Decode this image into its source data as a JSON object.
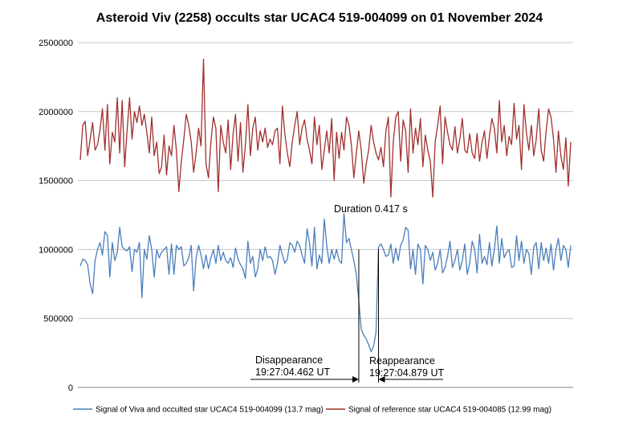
{
  "chart_data": {
    "type": "line",
    "title": "Asteroid Viv (2258) occults star UCAC4 519-004099 on 01 November 2024",
    "xlabel": "",
    "ylabel": "",
    "ylim": [
      0,
      2500000
    ],
    "yticks": [
      0,
      500000,
      1000000,
      1500000,
      2000000,
      2500000
    ],
    "ytick_labels": [
      "0",
      "500000",
      "1000000",
      "1500000",
      "2000000",
      "2500000"
    ],
    "grid": true,
    "legend_position": "bottom",
    "n_points": 200,
    "series": [
      {
        "name": "Signal of Viva and occulted star UCAC4 519-004099 (13.7 mag)",
        "color": "#4a7ebb",
        "values": [
          880000,
          930000,
          920000,
          890000,
          750000,
          680000,
          920000,
          1000000,
          1050000,
          960000,
          1130000,
          1100000,
          800000,
          1050000,
          920000,
          980000,
          1160000,
          1020000,
          1000000,
          990000,
          1020000,
          840000,
          1000000,
          980000,
          1050000,
          650000,
          1000000,
          930000,
          1100000,
          1000000,
          800000,
          1000000,
          940000,
          980000,
          1000000,
          1020000,
          820000,
          1040000,
          820000,
          1030000,
          1000000,
          1020000,
          880000,
          900000,
          940000,
          1030000,
          700000,
          940000,
          1030000,
          960000,
          860000,
          960000,
          860000,
          940000,
          1000000,
          900000,
          1030000,
          920000,
          980000,
          920000,
          900000,
          940000,
          870000,
          1010000,
          930000,
          890000,
          860000,
          790000,
          1060000,
          900000,
          950000,
          800000,
          860000,
          1000000,
          920000,
          1020000,
          940000,
          950000,
          920000,
          820000,
          900000,
          1030000,
          960000,
          900000,
          930000,
          1050000,
          1030000,
          980000,
          1060000,
          1030000,
          960000,
          900000,
          1150000,
          1050000,
          880000,
          1160000,
          860000,
          960000,
          900000,
          1220000,
          1030000,
          900000,
          1000000,
          930000,
          1000000,
          920000,
          900000,
          1260000,
          1050000,
          1080000,
          1000000,
          920000,
          820000,
          630000,
          420000,
          380000,
          350000,
          310000,
          260000,
          300000,
          400000,
          1020000,
          1040000,
          1000000,
          950000,
          960000,
          1040000,
          900000,
          1010000,
          920000,
          1030000,
          1070000,
          1160000,
          1140000,
          860000,
          1000000,
          820000,
          1040000,
          1000000,
          750000,
          1030000,
          1000000,
          920000,
          980000,
          850000,
          900000,
          1000000,
          830000,
          870000,
          950000,
          1060000,
          870000,
          920000,
          1000000,
          850000,
          920000,
          1040000,
          820000,
          900000,
          1060000,
          1000000,
          830000,
          1110000,
          900000,
          950000,
          890000,
          1050000,
          880000,
          1000000,
          1170000,
          900000,
          1080000,
          940000,
          980000,
          1000000,
          870000,
          880000,
          1100000,
          920000,
          1060000,
          900000,
          1000000,
          970000,
          820000,
          1020000,
          1050000,
          860000,
          1050000,
          920000,
          1010000,
          900000,
          1040000,
          850000,
          1000000,
          1080000,
          920000,
          1030000,
          1000000,
          870000,
          1030000
        ]
      },
      {
        "name": "Signal of reference star UCAC4 519-004085 (12.99 mag)",
        "color": "#a0302e",
        "values": [
          1650000,
          1900000,
          1930000,
          1680000,
          1800000,
          1920000,
          1720000,
          1760000,
          1870000,
          2020000,
          1720000,
          2050000,
          1620000,
          1850000,
          1780000,
          2100000,
          1700000,
          2080000,
          1600000,
          1860000,
          2100000,
          1800000,
          2000000,
          1920000,
          2040000,
          1900000,
          1980000,
          1850000,
          1700000,
          1960000,
          1680000,
          1780000,
          1550000,
          1600000,
          1830000,
          1540000,
          1750000,
          1680000,
          1900000,
          1720000,
          1420000,
          1640000,
          1800000,
          1980000,
          1900000,
          1780000,
          1560000,
          1700000,
          1880000,
          1750000,
          2380000,
          1620000,
          1520000,
          1780000,
          1960000,
          1880000,
          1420000,
          1900000,
          1780000,
          1700000,
          1940000,
          1580000,
          1840000,
          1980000,
          1640000,
          1920000,
          1560000,
          1760000,
          2050000,
          1680000,
          1880000,
          1960000,
          1720000,
          1860000,
          1780000,
          1880000,
          1740000,
          1800000,
          1760000,
          1860000,
          1880000,
          1620000,
          2040000,
          1840000,
          1700000,
          1600000,
          1780000,
          1900000,
          2000000,
          1760000,
          1880000,
          1940000,
          1800000,
          1720000,
          1620000,
          1960000,
          1760000,
          1900000,
          1580000,
          1720000,
          1860000,
          1700000,
          1950000,
          1500000,
          1850000,
          1660000,
          1850000,
          1720000,
          1960000,
          1900000,
          1760000,
          1520000,
          1700000,
          1860000,
          1720000,
          1480000,
          1620000,
          1720000,
          1900000,
          1780000,
          1700000,
          1650000,
          1740000,
          1600000,
          1860000,
          1960000,
          1380000,
          1780000,
          1960000,
          2000000,
          1640000,
          1940000,
          1860000,
          1560000,
          2020000,
          1700000,
          1880000,
          1760000,
          1950000,
          1600000,
          1830000,
          1720000,
          1640000,
          1380000,
          1780000,
          1900000,
          2040000,
          1620000,
          1960000,
          1850000,
          1760000,
          1720000,
          1890000,
          1700000,
          1800000,
          1950000,
          1720000,
          1700000,
          1840000,
          1700000,
          1660000,
          1840000,
          1640000,
          1780000,
          1860000,
          1660000,
          1820000,
          1950000,
          1880000,
          1700000,
          2080000,
          1780000,
          1900000,
          1680000,
          1820000,
          1760000,
          2060000,
          1800000,
          1900000,
          1580000,
          2050000,
          1850000,
          1720000,
          1900000,
          1680000,
          1800000,
          2020000,
          1720000,
          1640000,
          1860000,
          2020000,
          1960000,
          1800000,
          1560000,
          1860000,
          1680000,
          1580000,
          1810000,
          1460000,
          1780000
        ]
      }
    ],
    "annotations": {
      "duration": "Duration 0.417 s",
      "disappearance_label": "Disappearance",
      "disappearance_time": "19:27:04.462 UT",
      "reappearance_label": "Reappearance",
      "reappearance_time": "19:27:04.879 UT",
      "disappearance_index": 113,
      "reappearance_index": 121,
      "marker_level": 1000000
    }
  }
}
